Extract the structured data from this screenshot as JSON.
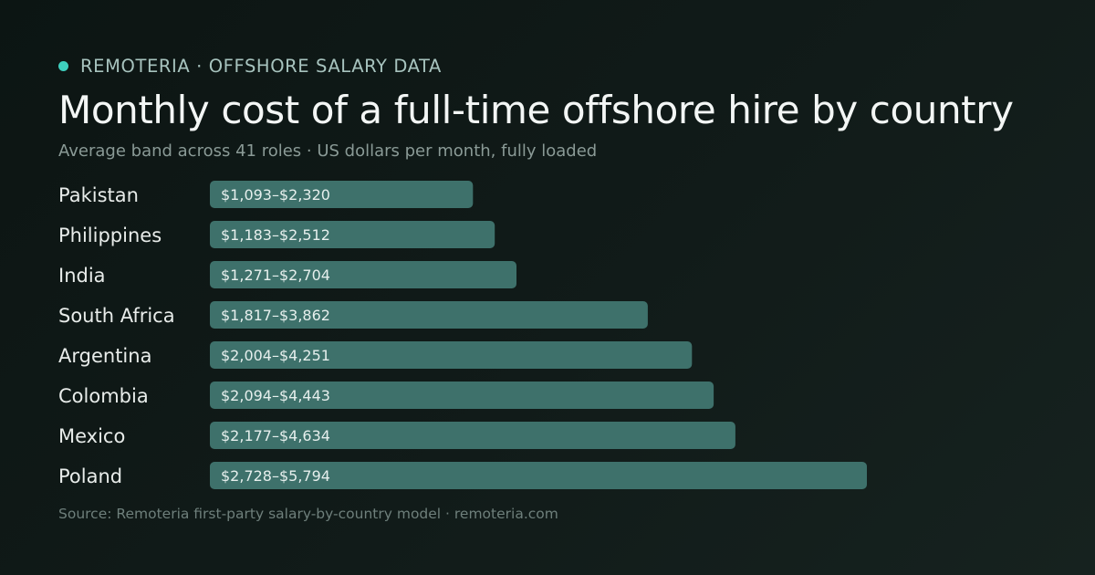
{
  "header": {
    "brand": "REMOTERIA · OFFSHORE SALARY DATA",
    "title": "Monthly cost of a full-time offshore hire by country",
    "subtitle": "Average band across 41 roles · US dollars per month, fully loaded"
  },
  "footer": {
    "source": "Source: Remoteria first-party salary-by-country model · remoteria.com"
  },
  "colors": {
    "background": "#111b19",
    "accent_dot": "#3ecfbe",
    "bar": "#3e716b",
    "bar_label": "#e6efed",
    "category_label": "#e8ecea"
  },
  "chart_data": {
    "type": "bar",
    "orientation": "horizontal",
    "categories": [
      "Pakistan",
      "Philippines",
      "India",
      "South Africa",
      "Argentina",
      "Colombia",
      "Mexico",
      "Poland"
    ],
    "values": [
      2320,
      2512,
      2704,
      3862,
      4251,
      4443,
      4634,
      5794
    ],
    "ranges": [
      [
        1093,
        2320
      ],
      [
        1183,
        2512
      ],
      [
        1271,
        2704
      ],
      [
        1817,
        3862
      ],
      [
        2004,
        4251
      ],
      [
        2094,
        4443
      ],
      [
        2177,
        4634
      ],
      [
        2728,
        5794
      ]
    ],
    "labels": [
      "$1,093–$2,320",
      "$1,183–$2,512",
      "$1,271–$2,704",
      "$1,817–$3,862",
      "$2,004–$4,251",
      "$2,094–$4,443",
      "$2,177–$4,634",
      "$2,728–$5,794"
    ],
    "title": "Monthly cost of a full-time offshore hire by country",
    "xlabel": "",
    "ylabel": "",
    "grid": false,
    "legend": "none"
  }
}
